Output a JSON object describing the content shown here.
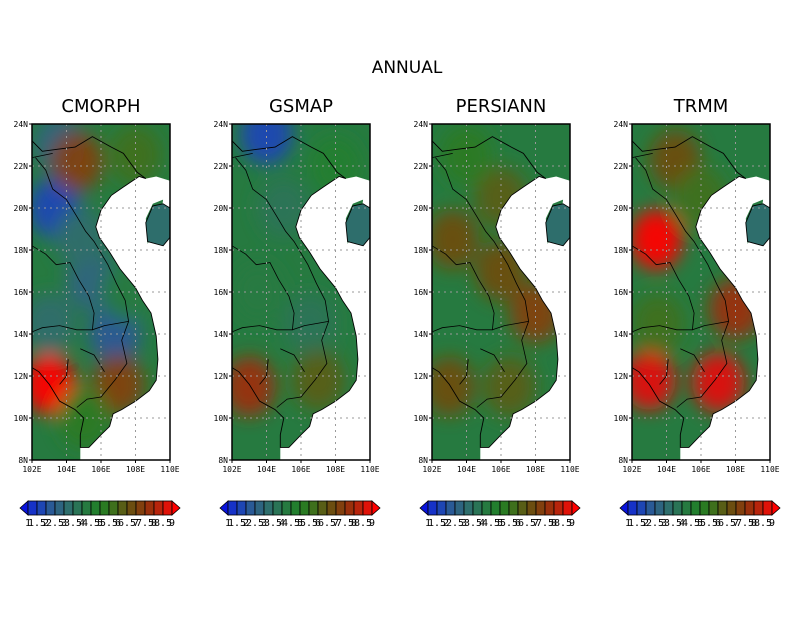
{
  "figure": {
    "title": "ANNUAL"
  },
  "chart_data": [
    {
      "type": "heatmap",
      "title": "CMORPH",
      "x_ticks": [
        "102E",
        "104E",
        "106E",
        "108E",
        "110E"
      ],
      "y_ticks": [
        "8N",
        "10N",
        "12N",
        "14N",
        "16N",
        "18N",
        "20N",
        "22N",
        "24N"
      ],
      "xlim": [
        102,
        110
      ],
      "ylim": [
        8,
        24
      ],
      "grid": true,
      "hotspots": [
        {
          "lon": 103.3,
          "lat": 20.0,
          "value": 1.6
        },
        {
          "lon": 106.8,
          "lat": 14.0,
          "value": 2.2
        },
        {
          "lon": 105.5,
          "lat": 16.5,
          "value": 2.8
        },
        {
          "lon": 104.8,
          "lat": 18.6,
          "value": 3.0
        },
        {
          "lon": 103.0,
          "lat": 14.5,
          "value": 3.2
        },
        {
          "lon": 103.6,
          "lat": 23.0,
          "value": 2.8
        },
        {
          "lon": 104.6,
          "lat": 22.2,
          "value": 7.0
        },
        {
          "lon": 108.0,
          "lat": 22.5,
          "value": 5.8
        },
        {
          "lon": 103.0,
          "lat": 11.6,
          "value": 9.2
        },
        {
          "lon": 107.0,
          "lat": 11.6,
          "value": 7.4
        },
        {
          "lon": 107.5,
          "lat": 16.0,
          "value": 4.0
        },
        {
          "lon": 105.0,
          "lat": 10.0,
          "value": 5.2
        }
      ]
    },
    {
      "type": "heatmap",
      "title": "GSMAP",
      "x_ticks": [
        "102E",
        "104E",
        "106E",
        "108E",
        "110E"
      ],
      "y_ticks": [
        "8N",
        "10N",
        "12N",
        "14N",
        "16N",
        "18N",
        "20N",
        "22N",
        "24N"
      ],
      "xlim": [
        102,
        110
      ],
      "ylim": [
        8,
        24
      ],
      "grid": true,
      "hotspots": [
        {
          "lon": 104.0,
          "lat": 23.5,
          "value": 1.8
        },
        {
          "lon": 105.0,
          "lat": 20.0,
          "value": 3.5
        },
        {
          "lon": 106.5,
          "lat": 14.5,
          "value": 3.8
        },
        {
          "lon": 103.5,
          "lat": 16.0,
          "value": 4.2
        },
        {
          "lon": 103.0,
          "lat": 11.5,
          "value": 7.5
        },
        {
          "lon": 107.0,
          "lat": 11.8,
          "value": 6.0
        },
        {
          "lon": 108.0,
          "lat": 22.0,
          "value": 4.5
        }
      ]
    },
    {
      "type": "heatmap",
      "title": "PERSIANN",
      "x_ticks": [
        "102E",
        "104E",
        "106E",
        "108E",
        "110E"
      ],
      "y_ticks": [
        "8N",
        "10N",
        "12N",
        "14N",
        "16N",
        "18N",
        "20N",
        "22N",
        "24N"
      ],
      "xlim": [
        102,
        110
      ],
      "ylim": [
        8,
        24
      ],
      "grid": true,
      "hotspots": [
        {
          "lon": 103.2,
          "lat": 18.5,
          "value": 6.8
        },
        {
          "lon": 108.0,
          "lat": 15.0,
          "value": 7.0
        },
        {
          "lon": 106.0,
          "lat": 20.5,
          "value": 6.0
        },
        {
          "lon": 104.0,
          "lat": 22.5,
          "value": 5.0
        },
        {
          "lon": 103.0,
          "lat": 11.5,
          "value": 6.5
        },
        {
          "lon": 106.5,
          "lat": 11.5,
          "value": 6.2
        },
        {
          "lon": 106.0,
          "lat": 17.0,
          "value": 6.5
        }
      ]
    },
    {
      "type": "heatmap",
      "title": "TRMM",
      "x_ticks": [
        "102E",
        "104E",
        "106E",
        "108E",
        "110E"
      ],
      "y_ticks": [
        "8N",
        "10N",
        "12N",
        "14N",
        "16N",
        "18N",
        "20N",
        "22N",
        "24N"
      ],
      "xlim": [
        102,
        110
      ],
      "ylim": [
        8,
        24
      ],
      "grid": true,
      "hotspots": [
        {
          "lon": 103.4,
          "lat": 18.5,
          "value": 9.0
        },
        {
          "lon": 103.0,
          "lat": 11.8,
          "value": 8.8
        },
        {
          "lon": 107.0,
          "lat": 11.7,
          "value": 8.6
        },
        {
          "lon": 108.0,
          "lat": 15.2,
          "value": 7.5
        },
        {
          "lon": 104.5,
          "lat": 22.3,
          "value": 6.5
        },
        {
          "lon": 106.0,
          "lat": 20.5,
          "value": 5.8
        },
        {
          "lon": 103.5,
          "lat": 14.5,
          "value": 5.5
        }
      ]
    }
  ],
  "colorbar": {
    "labels": [
      "1",
      "1.5",
      "2",
      "2.5",
      "3",
      "3.5",
      "4",
      "4.5",
      "5",
      "5.5",
      "6",
      "6.5",
      "7",
      "7.5",
      "8",
      "8.5",
      "9"
    ],
    "colors": [
      "#0a14dc",
      "#1632c8",
      "#1e46b4",
      "#2a5a96",
      "#2e6480",
      "#2e6e6c",
      "#2a7456",
      "#267a40",
      "#227e2e",
      "#2a7a22",
      "#3e701c",
      "#585e16",
      "#6c4e10",
      "#82400e",
      "#9a300c",
      "#b8240c",
      "#e01208",
      "#ff0000"
    ]
  },
  "colors": {
    "land_base": "#267a40",
    "sea": "#ffffff",
    "grid": "#9a9a9a"
  }
}
